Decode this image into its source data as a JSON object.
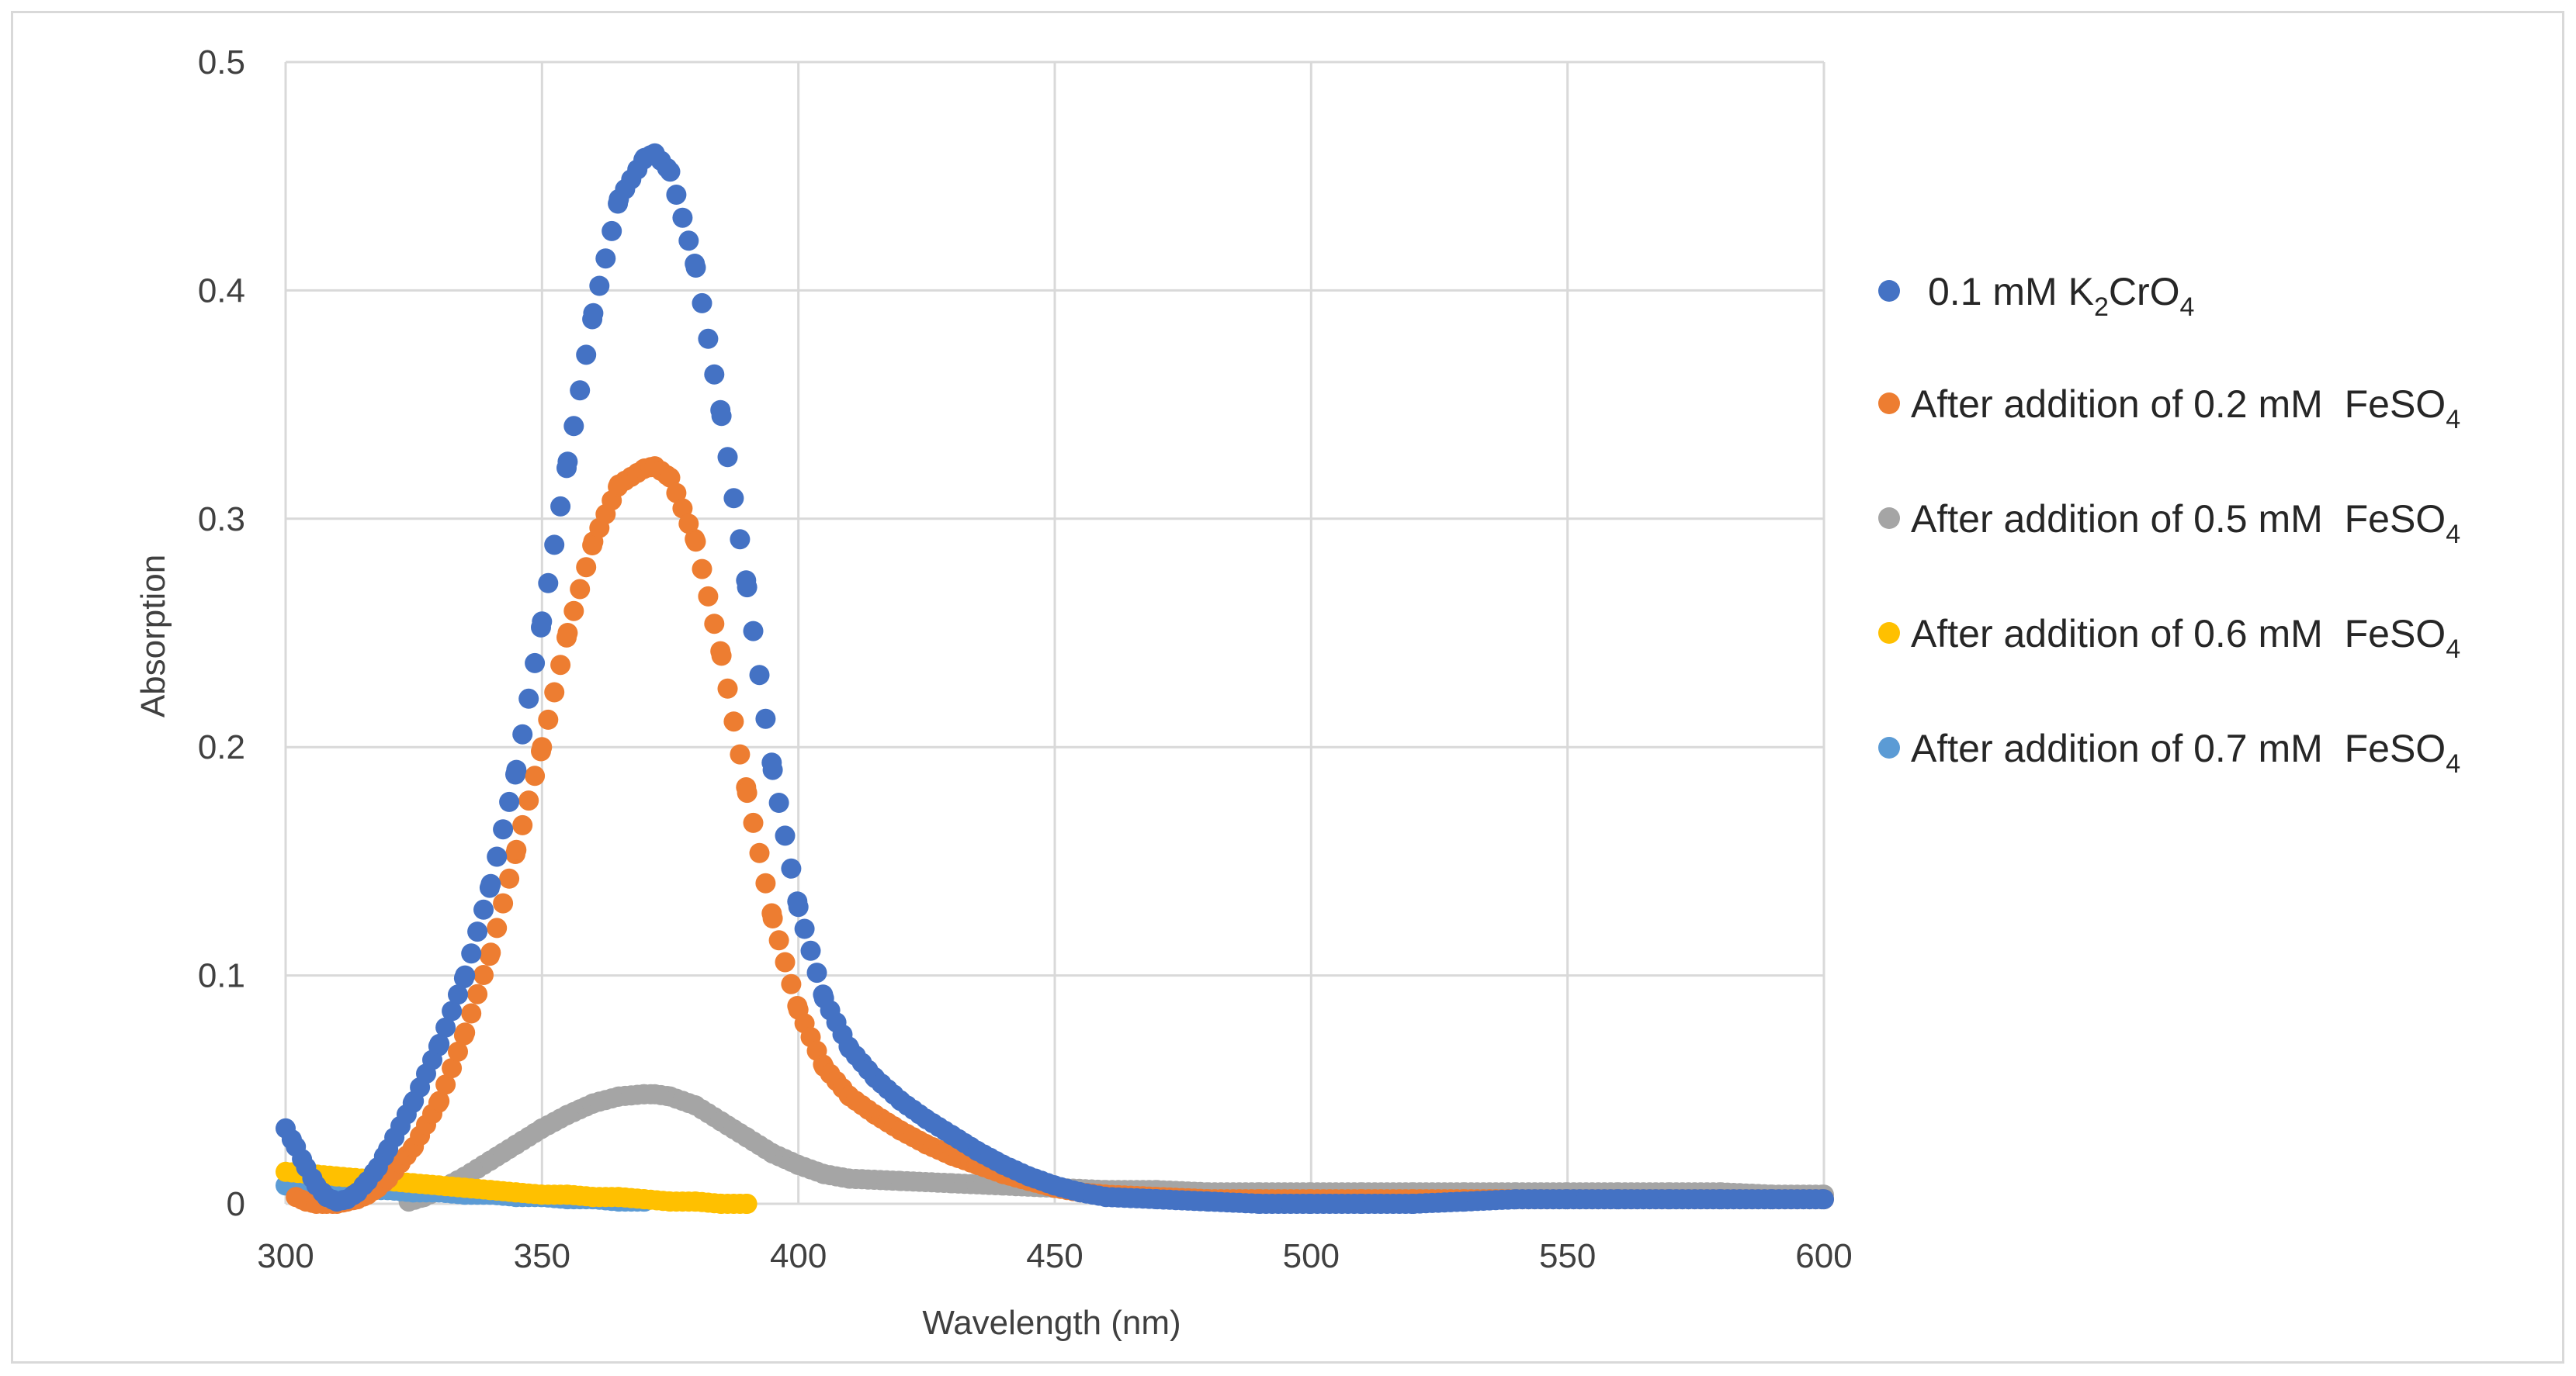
{
  "chart_data": {
    "type": "scatter",
    "title": "",
    "xlabel": "Wavelength (nm)",
    "ylabel": "Absorption",
    "xlim": [
      300,
      600
    ],
    "ylim": [
      0,
      0.5
    ],
    "x_ticks": [
      "300",
      "350",
      "400",
      "450",
      "500",
      "550",
      "600"
    ],
    "y_ticks": [
      "0",
      "0.1",
      "0.2",
      "0.3",
      "0.4",
      "0.5"
    ],
    "grid": true,
    "legend_position": "right",
    "series": [
      {
        "name": "0.1 mM K2CrO4",
        "label_main": "0.1 mM K",
        "label_sub1": "2",
        "label_mid": "CrO",
        "label_sub2": "4",
        "color": "#4472C4",
        "x": [
          300,
          302,
          304,
          306,
          308,
          310,
          312,
          314,
          316,
          318,
          320,
          325,
          330,
          335,
          340,
          345,
          350,
          355,
          360,
          365,
          370,
          372,
          375,
          380,
          385,
          390,
          395,
          400,
          405,
          410,
          415,
          420,
          425,
          430,
          435,
          440,
          445,
          450,
          455,
          460,
          470,
          480,
          490,
          500,
          510,
          520,
          530,
          540,
          550,
          560,
          570,
          580,
          590,
          600
        ],
        "values": [
          0.033,
          0.025,
          0.016,
          0.008,
          0.003,
          0.001,
          0.002,
          0.005,
          0.01,
          0.016,
          0.024,
          0.045,
          0.07,
          0.1,
          0.14,
          0.19,
          0.255,
          0.325,
          0.39,
          0.44,
          0.458,
          0.46,
          0.452,
          0.41,
          0.345,
          0.27,
          0.19,
          0.13,
          0.09,
          0.068,
          0.055,
          0.045,
          0.037,
          0.03,
          0.023,
          0.017,
          0.012,
          0.008,
          0.005,
          0.003,
          0.002,
          0.001,
          0.0,
          0.0,
          0.0,
          0.0,
          0.001,
          0.002,
          0.002,
          0.002,
          0.002,
          0.002,
          0.002,
          0.002
        ]
      },
      {
        "name": "After addition of 0.2 mM  FeSO4",
        "label_main": "After addition of 0.2 mM  FeSO",
        "label_sub": "4",
        "color": "#ED7D31",
        "x": [
          302,
          304,
          306,
          308,
          310,
          312,
          314,
          316,
          318,
          320,
          325,
          330,
          335,
          340,
          345,
          350,
          355,
          360,
          365,
          370,
          372,
          375,
          380,
          385,
          390,
          395,
          400,
          405,
          410,
          415,
          420,
          425,
          430,
          435,
          440,
          445,
          450,
          455,
          460,
          470,
          480,
          490,
          500,
          510,
          520,
          530,
          540,
          550,
          560,
          570,
          580,
          590,
          600
        ],
        "values": [
          0.003,
          0.001,
          0.0,
          0.0,
          0.0,
          0.001,
          0.002,
          0.004,
          0.007,
          0.011,
          0.025,
          0.045,
          0.075,
          0.11,
          0.155,
          0.2,
          0.25,
          0.29,
          0.315,
          0.322,
          0.323,
          0.318,
          0.29,
          0.24,
          0.18,
          0.125,
          0.085,
          0.06,
          0.047,
          0.039,
          0.032,
          0.026,
          0.021,
          0.017,
          0.013,
          0.01,
          0.007,
          0.005,
          0.004,
          0.003,
          0.002,
          0.002,
          0.002,
          0.002,
          0.002,
          0.002,
          0.002,
          0.002,
          0.002,
          0.002,
          0.002,
          0.002,
          0.002
        ]
      },
      {
        "name": "After addition of 0.5 mM  FeSO4",
        "label_main": "After addition of 0.5 mM  FeSO",
        "label_sub": "4",
        "color": "#A5A5A5",
        "x": [
          324,
          327,
          330,
          335,
          340,
          345,
          350,
          355,
          360,
          365,
          370,
          372,
          375,
          380,
          385,
          390,
          395,
          400,
          405,
          410,
          420,
          430,
          440,
          450,
          460,
          470,
          480,
          490,
          500,
          510,
          520,
          530,
          540,
          550,
          560,
          570,
          580,
          590,
          600
        ],
        "values": [
          0.001,
          0.003,
          0.006,
          0.012,
          0.019,
          0.026,
          0.033,
          0.039,
          0.044,
          0.047,
          0.048,
          0.048,
          0.047,
          0.043,
          0.036,
          0.029,
          0.022,
          0.017,
          0.013,
          0.011,
          0.01,
          0.009,
          0.008,
          0.007,
          0.006,
          0.006,
          0.005,
          0.005,
          0.005,
          0.005,
          0.005,
          0.005,
          0.005,
          0.005,
          0.005,
          0.005,
          0.005,
          0.004,
          0.004
        ]
      },
      {
        "name": "After addition of 0.6 mM  FeSO4",
        "label_main": "After addition of 0.6 mM  FeSO",
        "label_sub": "4",
        "color": "#FFC000",
        "x": [
          300,
          305,
          310,
          315,
          320,
          325,
          330,
          335,
          340,
          345,
          350,
          355,
          360,
          365,
          370,
          375,
          380,
          385,
          390
        ],
        "values": [
          0.014,
          0.013,
          0.012,
          0.011,
          0.01,
          0.009,
          0.008,
          0.007,
          0.006,
          0.005,
          0.004,
          0.004,
          0.003,
          0.003,
          0.002,
          0.001,
          0.001,
          0.0,
          0.0
        ]
      },
      {
        "name": "After addition of 0.7 mM  FeSO4",
        "label_main": "After addition of 0.7 mM  FeSO",
        "label_sub": "4",
        "color": "#5B9BD5",
        "x": [
          300,
          305,
          310,
          315,
          320,
          325,
          330,
          335,
          340,
          345,
          350,
          355,
          360,
          365,
          370
        ],
        "values": [
          0.008,
          0.007,
          0.007,
          0.006,
          0.006,
          0.005,
          0.005,
          0.004,
          0.004,
          0.003,
          0.003,
          0.002,
          0.002,
          0.001,
          0.001
        ]
      }
    ]
  }
}
